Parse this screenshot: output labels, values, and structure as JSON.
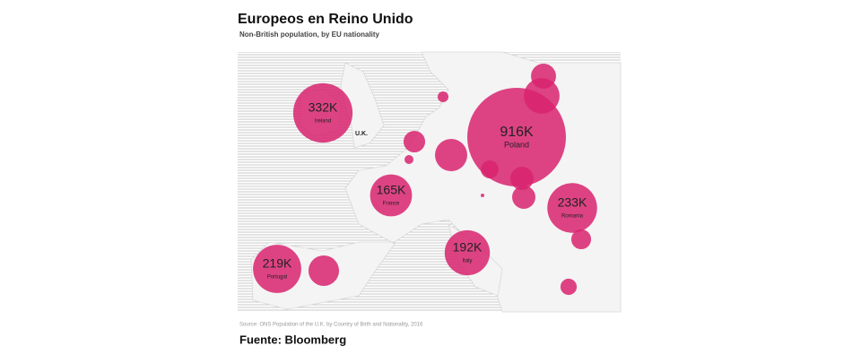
{
  "title": "Europeos en Reino Unido",
  "subtitle": "Non-British population, by EU nationality",
  "map_label": "U.K.",
  "source": "Source: ONS Population of the U.K. by Country of Birth and Nationality, 2016",
  "credit": "Fuente: Bloomberg",
  "bubble_color": "#d8236f",
  "bubbles": [
    {
      "name": "Poland",
      "label": "916K",
      "value": 916000
    },
    {
      "name": "Ireland",
      "label": "332K",
      "value": 332000
    },
    {
      "name": "Romania",
      "label": "233K",
      "value": 233000
    },
    {
      "name": "Portugal",
      "label": "219K",
      "value": 219000
    },
    {
      "name": "Italy",
      "label": "192K",
      "value": 192000
    },
    {
      "name": "France",
      "label": "165K",
      "value": 165000
    },
    {
      "value": 59000
    },
    {
      "value": 120000
    },
    {
      "value": 11000
    },
    {
      "value": 44000
    },
    {
      "value": 7600
    },
    {
      "value": 98000
    },
    {
      "value": 30000
    },
    {
      "value": 51000
    },
    {
      "value": 51000
    },
    {
      "value": 1200
    },
    {
      "value": 88000
    },
    {
      "value": 37000
    },
    {
      "value": 25000
    }
  ]
}
